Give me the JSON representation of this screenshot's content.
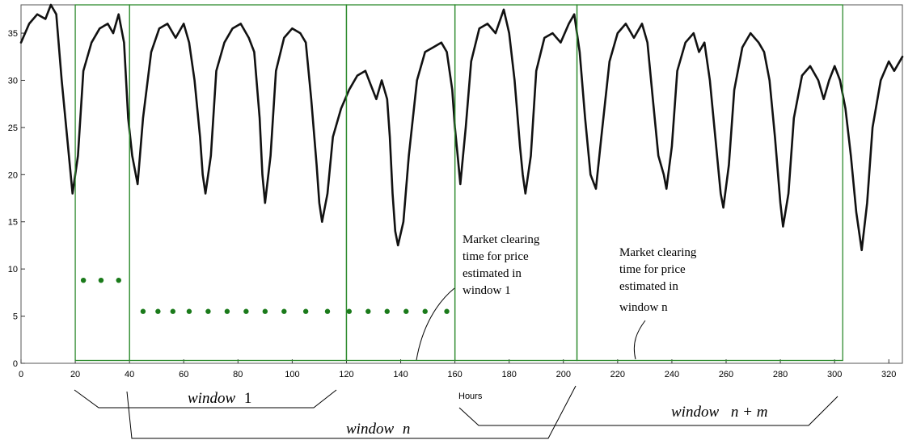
{
  "chart_data": {
    "type": "line",
    "xlabel": "Hours",
    "ylabel": "",
    "xlim": [
      0,
      325
    ],
    "ylim": [
      0,
      38
    ],
    "x_ticks": [
      0,
      20,
      40,
      60,
      80,
      100,
      120,
      140,
      160,
      180,
      200,
      220,
      240,
      260,
      280,
      300,
      320
    ],
    "y_ticks": [
      0,
      5,
      10,
      15,
      20,
      25,
      30,
      35
    ],
    "grid": false,
    "series": [
      {
        "color": "#111111",
        "points": [
          [
            0,
            34
          ],
          [
            3,
            36
          ],
          [
            6,
            37
          ],
          [
            9,
            36.5
          ],
          [
            11,
            38
          ],
          [
            13,
            37
          ],
          [
            15,
            30
          ],
          [
            17,
            24
          ],
          [
            19,
            18
          ],
          [
            21,
            22
          ],
          [
            23,
            31
          ],
          [
            26,
            34
          ],
          [
            29,
            35.5
          ],
          [
            32,
            36
          ],
          [
            34,
            35
          ],
          [
            36,
            37
          ],
          [
            38,
            34
          ],
          [
            39.5,
            26
          ],
          [
            41,
            22
          ],
          [
            43,
            19
          ],
          [
            45,
            26
          ],
          [
            48,
            33
          ],
          [
            51,
            35.5
          ],
          [
            54,
            36
          ],
          [
            57,
            34.5
          ],
          [
            60,
            36
          ],
          [
            62,
            34
          ],
          [
            64,
            30
          ],
          [
            66,
            24
          ],
          [
            67,
            20
          ],
          [
            68,
            18
          ],
          [
            70,
            22
          ],
          [
            72,
            31
          ],
          [
            75,
            34
          ],
          [
            78,
            35.5
          ],
          [
            81,
            36
          ],
          [
            84,
            34.5
          ],
          [
            86,
            33
          ],
          [
            88,
            26
          ],
          [
            89,
            20
          ],
          [
            90,
            17
          ],
          [
            92,
            22
          ],
          [
            94,
            31
          ],
          [
            97,
            34.5
          ],
          [
            100,
            35.5
          ],
          [
            103,
            35
          ],
          [
            105,
            34
          ],
          [
            107,
            28
          ],
          [
            109,
            21
          ],
          [
            110,
            17
          ],
          [
            111,
            15
          ],
          [
            113,
            18
          ],
          [
            115,
            24
          ],
          [
            118,
            27
          ],
          [
            121,
            29
          ],
          [
            124,
            30.5
          ],
          [
            127,
            31
          ],
          [
            129,
            29.5
          ],
          [
            131,
            28
          ],
          [
            133,
            30
          ],
          [
            135,
            28
          ],
          [
            136,
            24
          ],
          [
            137,
            18
          ],
          [
            138,
            14
          ],
          [
            139,
            12.5
          ],
          [
            141,
            15
          ],
          [
            143,
            22
          ],
          [
            146,
            30
          ],
          [
            149,
            33
          ],
          [
            152,
            33.5
          ],
          [
            155,
            34
          ],
          [
            157,
            33
          ],
          [
            159,
            29
          ],
          [
            160,
            25
          ],
          [
            161,
            22
          ],
          [
            162,
            19
          ],
          [
            164,
            25
          ],
          [
            166,
            32
          ],
          [
            169,
            35.5
          ],
          [
            172,
            36
          ],
          [
            175,
            35
          ],
          [
            178,
            37.5
          ],
          [
            180,
            35
          ],
          [
            182,
            30
          ],
          [
            184,
            23
          ],
          [
            185,
            20
          ],
          [
            186,
            18
          ],
          [
            188,
            22
          ],
          [
            190,
            31
          ],
          [
            193,
            34.5
          ],
          [
            196,
            35
          ],
          [
            199,
            34
          ],
          [
            202,
            36
          ],
          [
            204,
            37
          ],
          [
            206,
            33
          ],
          [
            208,
            26
          ],
          [
            210,
            20
          ],
          [
            212,
            18.5
          ],
          [
            214,
            24
          ],
          [
            217,
            32
          ],
          [
            220,
            35
          ],
          [
            223,
            36
          ],
          [
            226,
            34.5
          ],
          [
            229,
            36
          ],
          [
            231,
            34
          ],
          [
            233,
            28
          ],
          [
            235,
            22
          ],
          [
            237,
            20
          ],
          [
            238,
            18.5
          ],
          [
            240,
            23
          ],
          [
            242,
            31
          ],
          [
            245,
            34
          ],
          [
            248,
            35
          ],
          [
            250,
            33
          ],
          [
            252,
            34
          ],
          [
            254,
            30
          ],
          [
            256,
            24
          ],
          [
            258,
            18
          ],
          [
            259,
            16.5
          ],
          [
            261,
            21
          ],
          [
            263,
            29
          ],
          [
            266,
            33.5
          ],
          [
            269,
            35
          ],
          [
            272,
            34
          ],
          [
            274,
            33
          ],
          [
            276,
            30
          ],
          [
            278,
            24
          ],
          [
            280,
            17
          ],
          [
            281,
            14.5
          ],
          [
            283,
            18
          ],
          [
            285,
            26
          ],
          [
            288,
            30.5
          ],
          [
            291,
            31.5
          ],
          [
            294,
            30
          ],
          [
            296,
            28
          ],
          [
            298,
            30
          ],
          [
            300,
            31.5
          ],
          [
            302,
            30
          ],
          [
            304,
            27
          ],
          [
            306,
            22
          ],
          [
            308,
            16
          ],
          [
            310,
            12
          ],
          [
            312,
            17
          ],
          [
            314,
            25
          ],
          [
            317,
            30
          ],
          [
            320,
            32
          ],
          [
            322,
            31
          ],
          [
            325,
            32.5
          ]
        ]
      }
    ],
    "windows": [
      {
        "x0": 20,
        "x1": 40,
        "y0": 0.3,
        "y1": 38
      },
      {
        "x0": 40,
        "x1": 120,
        "y0": 0.3,
        "y1": 38
      },
      {
        "x0": 120,
        "x1": 160,
        "y0": 0.3,
        "y1": 38
      },
      {
        "x0": 160,
        "x1": 205,
        "y0": 0.3,
        "y1": 38
      },
      {
        "x0": 205,
        "x1": 303,
        "y0": 0.3,
        "y1": 38
      }
    ],
    "window_color": "#2e8b2e",
    "marker_color": "#1a7a1a",
    "markers_upper": {
      "y": 8.8,
      "x": [
        23,
        29.5,
        36
      ]
    },
    "markers_lower": {
      "y": 5.5,
      "x": [
        45,
        50.5,
        56,
        62,
        69,
        76,
        83,
        90,
        97,
        105,
        113,
        121,
        128,
        135,
        142,
        149,
        157
      ]
    },
    "annotations": [
      {
        "label_lines": [
          "Market clearing",
          "time for price",
          "estimated in",
          "window 1"
        ],
        "x": 163,
        "y": 14.4
      },
      {
        "label_lines": [
          "Market clearing",
          "time for price",
          "estimated in",
          "window n"
        ],
        "x": 225,
        "y": 12.6
      }
    ],
    "window_labels": [
      {
        "name": "window",
        "suffix": "1"
      },
      {
        "name": "window",
        "suffix": "n"
      },
      {
        "name": "window",
        "suffix": "n + m"
      }
    ]
  }
}
